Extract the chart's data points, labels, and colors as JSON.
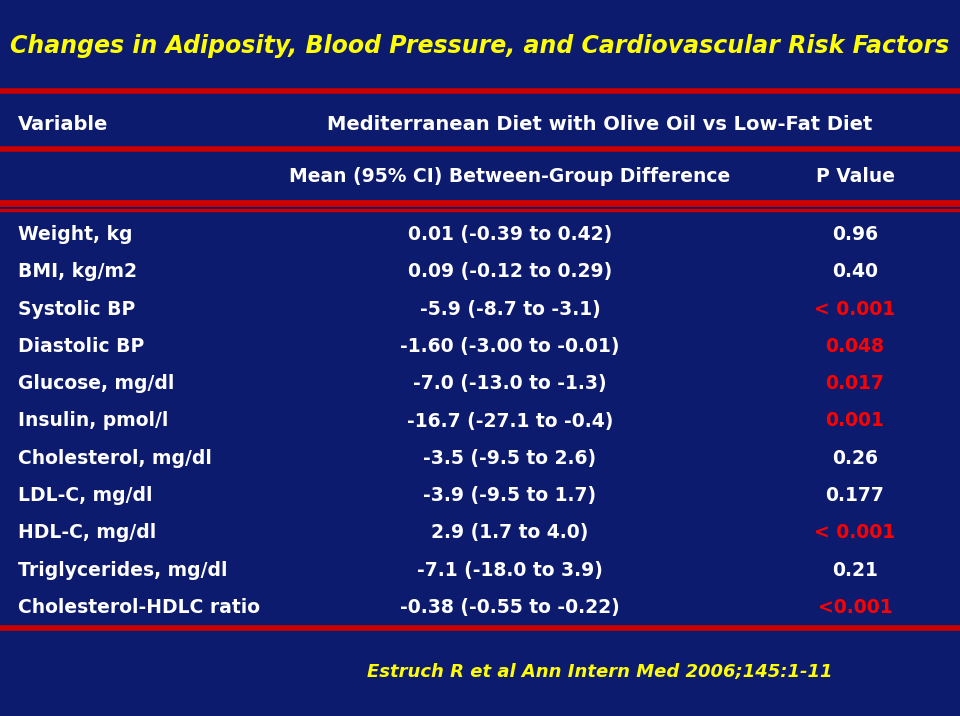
{
  "title": "Changes in Adiposity, Blood Pressure, and Cardiovascular Risk Factors",
  "bg_color": "#0D1B6E",
  "title_color": "#FFFF00",
  "header_color": "#FFFFFF",
  "data_color": "#FFFFFF",
  "red_color": "#FF0000",
  "line_color": "#CC0000",
  "col1_header": "Variable",
  "col2_header": "Mediterranean Diet with Olive Oil vs Low-Fat Diet",
  "col2_sub": "Mean (95% CI) Between-Group Difference",
  "col3_sub": "P Value",
  "citation": "Estruch R et al Ann Intern Med 2006;145:1-11",
  "rows": [
    {
      "variable": "Weight, kg",
      "mean_ci": "0.01 (-0.39 to 0.42)",
      "pvalue": "0.96",
      "p_red": false
    },
    {
      "variable": "BMI, kg/m2",
      "mean_ci": "0.09 (-0.12 to 0.29)",
      "pvalue": "0.40",
      "p_red": false
    },
    {
      "variable": "Systolic BP",
      "mean_ci": "-5.9 (-8.7 to -3.1)",
      "pvalue": "< 0.001",
      "p_red": true
    },
    {
      "variable": "Diastolic BP",
      "mean_ci": "-1.60 (-3.00 to -0.01)",
      "pvalue": "0.048",
      "p_red": true
    },
    {
      "variable": "Glucose, mg/dl",
      "mean_ci": "-7.0 (-13.0 to -1.3)",
      "pvalue": "0.017",
      "p_red": true
    },
    {
      "variable": "Insulin, pmol/l",
      "mean_ci": "-16.7 (-27.1 to -0.4)",
      "pvalue": "0.001",
      "p_red": true
    },
    {
      "variable": "Cholesterol, mg/dl",
      "mean_ci": "-3.5 (-9.5 to 2.6)",
      "pvalue": "0.26",
      "p_red": false
    },
    {
      "variable": "LDL-C, mg/dl",
      "mean_ci": "-3.9 (-9.5 to 1.7)",
      "pvalue": "0.177",
      "p_red": false
    },
    {
      "variable": "HDL-C, mg/dl",
      "mean_ci": "2.9 (1.7 to 4.0)",
      "pvalue": "< 0.001",
      "p_red": true
    },
    {
      "variable": "Triglycerides, mg/dl",
      "mean_ci": "-7.1 (-18.0 to 3.9)",
      "pvalue": "0.21",
      "p_red": false
    },
    {
      "variable": "Cholesterol-HDLC ratio",
      "mean_ci": "-0.38 (-0.55 to -0.22)",
      "pvalue": "<0.001",
      "p_red": true
    }
  ],
  "figsize": [
    9.6,
    7.16
  ],
  "dpi": 100
}
